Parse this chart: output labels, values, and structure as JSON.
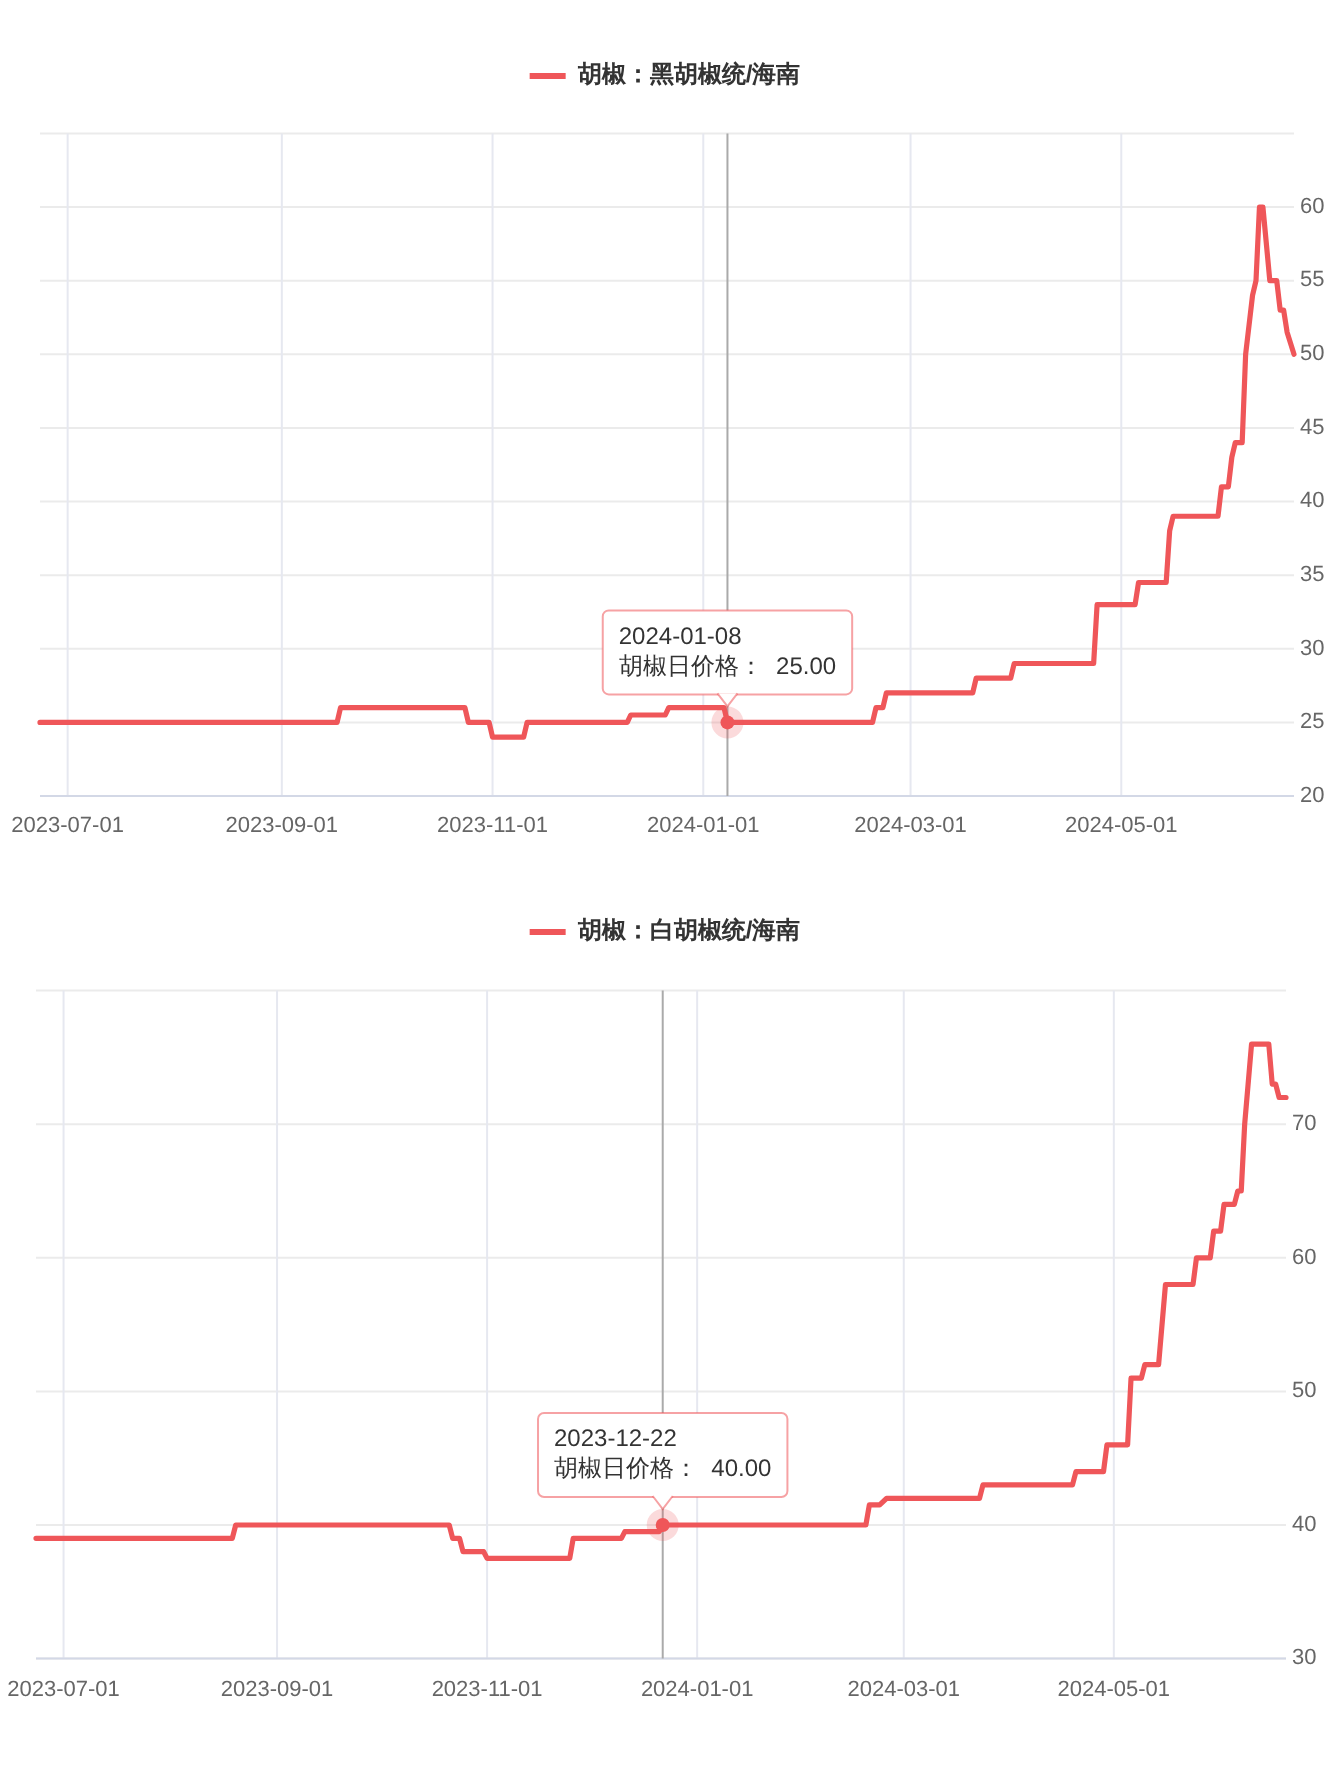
{
  "chart_data": [
    {
      "type": "line",
      "x": [
        "2023-06-23",
        "2023-09-17",
        "2023-09-18",
        "2023-10-24",
        "2023-10-25",
        "2023-10-31",
        "2023-11-01",
        "2023-11-10",
        "2023-11-11",
        "2023-12-10",
        "2023-12-11",
        "2023-12-21",
        "2023-12-22",
        "2024-01-07",
        "2024-01-08",
        "2024-02-19",
        "2024-02-20",
        "2024-02-22",
        "2024-02-23",
        "2024-03-19",
        "2024-03-20",
        "2024-03-30",
        "2024-03-31",
        "2024-04-23",
        "2024-04-24",
        "2024-05-05",
        "2024-05-06",
        "2024-05-14",
        "2024-05-15",
        "2024-05-16",
        "2024-05-29",
        "2024-05-30",
        "2024-06-01",
        "2024-06-02",
        "2024-06-03",
        "2024-06-05",
        "2024-06-06",
        "2024-06-08",
        "2024-06-09",
        "2024-06-10",
        "2024-06-11",
        "2024-06-13",
        "2024-06-15",
        "2024-06-16",
        "2024-06-17",
        "2024-06-18",
        "2024-06-20"
      ],
      "series": [
        {
          "name": "胡椒：黑胡椒统/海南",
          "color": "#ef5659",
          "values": [
            25,
            25,
            26,
            26,
            25,
            25,
            24,
            24,
            25,
            25,
            25.5,
            25.5,
            26,
            26,
            25,
            25,
            26,
            26,
            27,
            27,
            28,
            28,
            29,
            29,
            33,
            33,
            34.5,
            34.5,
            38,
            39,
            39,
            41,
            41,
            43,
            44,
            44,
            50,
            54,
            55,
            60,
            60,
            55,
            55,
            53,
            53,
            51.5,
            50
          ]
        }
      ],
      "xlim": [
        "2023-06-23",
        "2024-06-20"
      ],
      "xticks": [
        "2023-07-01",
        "2023-09-01",
        "2023-11-01",
        "2024-01-01",
        "2024-03-01",
        "2024-05-01"
      ],
      "ylim": [
        20,
        65
      ],
      "yticks": [
        20,
        25,
        30,
        35,
        40,
        45,
        50,
        55,
        60,
        {
          "value": 65,
          "label": null
        }
      ],
      "grid": true,
      "legend": "top",
      "ref_lines": [
        {
          "axis": "x",
          "value": "2024-01-08",
          "color": "#aaaaaa"
        }
      ],
      "annotations": [
        {
          "text": "2024-01-08\n胡椒日价格：  25.00",
          "x": "2024-01-08",
          "y": 25
        }
      ]
    },
    {
      "type": "line",
      "x": [
        "2023-06-23",
        "2023-08-19",
        "2023-08-20",
        "2023-10-21",
        "2023-10-22",
        "2023-10-24",
        "2023-10-25",
        "2023-10-31",
        "2023-11-01",
        "2023-11-25",
        "2023-11-26",
        "2023-12-10",
        "2023-12-11",
        "2023-12-21",
        "2023-12-22",
        "2024-02-19",
        "2024-02-20",
        "2024-02-23",
        "2024-02-25",
        "2024-03-23",
        "2024-03-24",
        "2024-04-19",
        "2024-04-20",
        "2024-04-28",
        "2024-04-29",
        "2024-05-05",
        "2024-05-06",
        "2024-05-09",
        "2024-05-10",
        "2024-05-14",
        "2024-05-16",
        "2024-05-24",
        "2024-05-25",
        "2024-05-29",
        "2024-05-30",
        "2024-06-01",
        "2024-06-02",
        "2024-06-05",
        "2024-06-06",
        "2024-06-07",
        "2024-06-08",
        "2024-06-10",
        "2024-06-15",
        "2024-06-16",
        "2024-06-17",
        "2024-06-18",
        "2024-06-20"
      ],
      "series": [
        {
          "name": "胡椒：白胡椒统/海南",
          "color": "#ef5659",
          "values": [
            39,
            39,
            40,
            40,
            39,
            39,
            38,
            38,
            37.5,
            37.5,
            39,
            39,
            39.5,
            39.5,
            40,
            40,
            41.5,
            41.5,
            42,
            42,
            43,
            43,
            44,
            44,
            46,
            46,
            51,
            51,
            52,
            52,
            58,
            58,
            60,
            60,
            62,
            62,
            64,
            64,
            65,
            65,
            70,
            76,
            76,
            73,
            73,
            72,
            72
          ]
        }
      ],
      "xlim": [
        "2023-06-23",
        "2024-06-20"
      ],
      "xticks": [
        "2023-07-01",
        "2023-09-01",
        "2023-11-01",
        "2024-01-01",
        "2024-03-01",
        "2024-05-01"
      ],
      "ylim": [
        30,
        80
      ],
      "yticks": [
        30,
        40,
        50,
        60,
        70,
        {
          "value": 80,
          "label": null
        }
      ],
      "grid": true,
      "legend": "top",
      "ref_lines": [
        {
          "axis": "x",
          "value": "2023-12-22",
          "color": "#aaaaaa"
        }
      ],
      "annotations": [
        {
          "text": "2023-12-22\n胡椒日价格：  40.00",
          "x": "2023-12-22",
          "y": 40
        }
      ]
    }
  ]
}
